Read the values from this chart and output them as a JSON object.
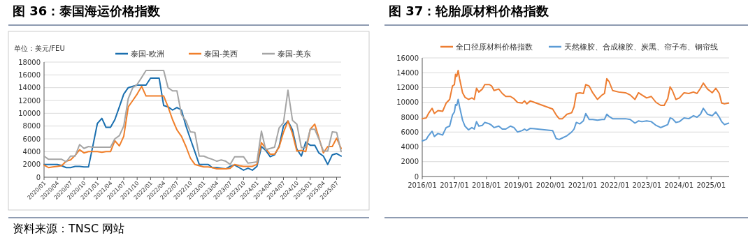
{
  "chart_data": [
    {
      "type": "line",
      "title": "图 36：泰国海运价格指数",
      "ylabel": "单位：美元/FEU",
      "annotations": [
        "资料来源：TNSC 网站"
      ],
      "legend": "top",
      "grid": "y",
      "marker": "none",
      "line_style": "solid",
      "x": [
        "2020-01",
        "2020-02",
        "2020-03",
        "2020-04",
        "2020-05",
        "2020-06",
        "2020-07",
        "2020-08",
        "2020-09",
        "2020-10",
        "2020-11",
        "2020-12",
        "2021-01",
        "2021-02",
        "2021-03",
        "2021-04",
        "2021-05",
        "2021-06",
        "2021-07",
        "2021-08",
        "2021-09",
        "2021-10",
        "2021-11",
        "2021-12",
        "2022-01",
        "2022-02",
        "2022-03",
        "2022-04",
        "2022-05",
        "2022-06",
        "2022-07",
        "2022-08",
        "2022-09",
        "2022-10",
        "2022-11",
        "2022-12",
        "2023-01",
        "2023-02",
        "2023-03",
        "2023-04",
        "2023-05",
        "2023-06",
        "2023-07",
        "2023-08",
        "2023-09",
        "2023-10",
        "2023-11",
        "2023-12",
        "2024-01",
        "2024-02",
        "2024-03",
        "2024-04",
        "2024-05",
        "2024-06",
        "2024-07",
        "2024-08",
        "2024-09",
        "2024-10",
        "2024-11",
        "2024-12",
        "2025-01",
        "2025-02",
        "2025-03",
        "2025-04",
        "2025-05",
        "2025-06",
        "2025-07",
        "2025-08"
      ],
      "series": [
        {
          "name": "泰国-欧洲",
          "color": "#1a6faf",
          "values": [
            2000,
            2000,
            2000,
            2000,
            1800,
            1500,
            1500,
            1700,
            1700,
            1600,
            1600,
            4900,
            8400,
            9200,
            7800,
            7800,
            9000,
            11000,
            13000,
            14000,
            14200,
            14400,
            14400,
            14400,
            15500,
            15500,
            15500,
            11200,
            11000,
            10500,
            10900,
            10500,
            8000,
            6000,
            4000,
            2000,
            2000,
            2000,
            1500,
            1500,
            1400,
            1300,
            1700,
            1900,
            1500,
            1100,
            1400,
            1100,
            1700,
            4800,
            4200,
            3200,
            3500,
            4800,
            8000,
            8800,
            7400,
            4400,
            3300,
            5500,
            5000,
            5000,
            3800,
            3300,
            2000,
            3500,
            3700,
            3300
          ]
        },
        {
          "name": "泰国-美西",
          "color": "#f07f2a",
          "values": [
            1900,
            1500,
            1600,
            1700,
            1800,
            2500,
            2700,
            3400,
            4300,
            3800,
            4000,
            4000,
            4000,
            3900,
            4000,
            4000,
            5700,
            4900,
            6400,
            11000,
            12000,
            13000,
            14200,
            12700,
            12700,
            12700,
            12700,
            12700,
            11000,
            9000,
            7400,
            6400,
            4800,
            3000,
            2000,
            1800,
            1600,
            1600,
            1500,
            1300,
            1300,
            1300,
            1400,
            2000,
            1800,
            1700,
            1700,
            1700,
            2000,
            5400,
            4500,
            3600,
            3600,
            4700,
            7000,
            8800,
            6800,
            4100,
            4200,
            4000,
            7500,
            8300,
            6200,
            3800,
            4800,
            4800,
            6100,
            4500
          ]
        },
        {
          "name": "泰国-美东",
          "color": "#a5a5a5",
          "values": [
            3300,
            2800,
            2800,
            2800,
            2800,
            2400,
            3300,
            3300,
            5100,
            4500,
            4800,
            4700,
            4700,
            4700,
            4700,
            4700,
            6000,
            6500,
            8000,
            12300,
            14000,
            14500,
            15600,
            16700,
            16700,
            16700,
            16700,
            16700,
            14000,
            13500,
            13500,
            9800,
            8800,
            7100,
            7000,
            3300,
            3300,
            3000,
            2800,
            2500,
            2700,
            2500,
            2000,
            3200,
            3200,
            3200,
            2200,
            2300,
            2400,
            7200,
            4300,
            4500,
            4700,
            7700,
            8500,
            13600,
            8900,
            8300,
            4600,
            4700,
            7500,
            7500,
            6000,
            4100,
            4100,
            7100,
            7000,
            4000
          ]
        }
      ],
      "xlim": [
        "2020-01",
        "2025-08"
      ],
      "xticks": [
        {
          "value": "2020-01",
          "label": "2020/01"
        },
        {
          "value": "2020-04",
          "label": "2020/04"
        },
        {
          "value": "2020-07",
          "label": "2020/07"
        },
        {
          "value": "2020-10",
          "label": "2020/10"
        },
        {
          "value": "2021-01",
          "label": "2021/01"
        },
        {
          "value": "2021-04",
          "label": "2021/04"
        },
        {
          "value": "2021-07",
          "label": "2021/07"
        },
        {
          "value": "2021-10",
          "label": "2021/10"
        },
        {
          "value": "2022-01",
          "label": "2022/01"
        },
        {
          "value": "2022-04",
          "label": "2022/04"
        },
        {
          "value": "2022-07",
          "label": "2022/07"
        },
        {
          "value": "2022-10",
          "label": "2022/10"
        },
        {
          "value": "2023-01",
          "label": "2023/01"
        },
        {
          "value": "2023-04",
          "label": "2023/04"
        },
        {
          "value": "2023-07",
          "label": "2023/07"
        },
        {
          "value": "2023-10",
          "label": "2023/10"
        },
        {
          "value": "2024-01",
          "label": "2024/01"
        },
        {
          "value": "2024-04",
          "label": "2024/04"
        },
        {
          "value": "2024-07",
          "label": "2024/07"
        },
        {
          "value": "2024-10",
          "label": "2024/10"
        },
        {
          "value": "2025-01",
          "label": "2025/01"
        },
        {
          "value": "2025-04",
          "label": "2025/04"
        },
        {
          "value": "2025-07",
          "label": "2025/07"
        }
      ],
      "ylim": [
        0,
        18000
      ],
      "yticks": [
        0,
        2000,
        4000,
        6000,
        8000,
        10000,
        12000,
        14000,
        16000,
        18000
      ]
    },
    {
      "type": "line",
      "title": "图 37：轮胎原材料价格指数",
      "legend": "top",
      "grid": "y",
      "marker": "none",
      "line_style": "solid",
      "x": [
        "2016-01-01",
        "2016-02-15",
        "2016-03-12",
        "2016-04-22",
        "2016-05-18",
        "2016-06-28",
        "2016-08-20",
        "2016-09-29",
        "2016-11-08",
        "2016-12-10",
        "2017-01-01",
        "2017-01-14",
        "2017-01-28",
        "2017-02-13",
        "2017-03-01",
        "2017-04-04",
        "2017-05-01",
        "2017-06-10",
        "2017-07-19",
        "2017-08-15",
        "2017-09-10",
        "2017-10-06",
        "2017-11-15",
        "2017-12-13",
        "2018-02-04",
        "2018-03-02",
        "2018-03-28",
        "2018-05-21",
        "2018-06-30",
        "2018-08-09",
        "2018-10-01",
        "2018-11-10",
        "2018-12-20",
        "2019-02-12",
        "2019-03-10",
        "2019-04-05",
        "2019-05-15",
        "2020-01-24",
        "2020-03-05",
        "2020-04-08",
        "2020-05-14",
        "2020-07-05",
        "2020-08-28",
        "2020-09-24",
        "2020-10-20",
        "2020-11-29",
        "2021-01-08",
        "2021-02-04",
        "2021-03-15",
        "2021-04-24",
        "2021-06-17",
        "2021-08-09",
        "2021-09-05",
        "2021-10-02",
        "2021-10-28",
        "2021-12-07",
        "2022-02-12",
        "2022-05-02",
        "2022-06-25",
        "2022-08-18",
        "2022-09-27",
        "2022-11-05",
        "2022-12-29",
        "2023-02-20",
        "2023-04-15",
        "2023-06-07",
        "2023-07-17",
        "2023-08-26",
        "2023-09-22",
        "2023-10-18",
        "2023-11-27",
        "2024-01-06",
        "2024-02-28",
        "2024-04-22",
        "2024-06-14",
        "2024-07-24",
        "2024-09-02",
        "2024-10-04",
        "2024-11-21",
        "2025-01-14",
        "2025-02-23",
        "2025-04-04",
        "2025-05-01",
        "2025-06-02",
        "2025-07-19"
      ],
      "series": [
        {
          "name": "全口径原材料价格指数",
          "color": "#ed7d31",
          "values": [
            7800,
            7900,
            8500,
            9200,
            8500,
            8900,
            8800,
            9900,
            10400,
            12200,
            12400,
            13800,
            13500,
            14300,
            13200,
            11300,
            10700,
            10400,
            10600,
            10400,
            11900,
            11400,
            11800,
            12400,
            12400,
            12200,
            11600,
            11800,
            11200,
            10800,
            10800,
            10500,
            10000,
            9900,
            10200,
            9800,
            10200,
            9100,
            8300,
            7800,
            7800,
            8400,
            8600,
            9400,
            11200,
            11300,
            11200,
            12400,
            12200,
            11300,
            10400,
            11000,
            11200,
            13200,
            12800,
            11600,
            11400,
            11300,
            11000,
            10400,
            11300,
            11000,
            10600,
            10800,
            10000,
            9600,
            9600,
            10500,
            12100,
            11600,
            10400,
            10600,
            11300,
            11200,
            11400,
            11200,
            11900,
            12600,
            11800,
            11300,
            11900,
            11200,
            9900,
            9800,
            9900
          ]
        },
        {
          "name": "天然橡胶、合成橡胶、炭黑、帘子布、钢帘线",
          "color": "#5b9bd5",
          "values": [
            4800,
            5000,
            5500,
            6100,
            5400,
            5800,
            5600,
            6600,
            6800,
            8300,
            8700,
            9700,
            9600,
            10400,
            9400,
            7600,
            6800,
            6300,
            6600,
            6400,
            7400,
            6800,
            6900,
            7300,
            7100,
            6900,
            6600,
            6800,
            6400,
            6400,
            6800,
            6600,
            6000,
            6200,
            6400,
            6200,
            6500,
            6200,
            5100,
            5000,
            5200,
            5500,
            6000,
            6400,
            7300,
            7100,
            7500,
            8500,
            7700,
            7700,
            7600,
            7700,
            7700,
            8400,
            8100,
            7800,
            7800,
            7800,
            7700,
            7200,
            7500,
            7400,
            7500,
            7400,
            6900,
            6600,
            6800,
            7000,
            7900,
            7800,
            7300,
            7400,
            7900,
            7800,
            8200,
            8000,
            8400,
            9200,
            8400,
            8200,
            8700,
            8000,
            7400,
            7000,
            7200
          ]
        }
      ],
      "xlim": [
        "2016-01-01",
        "2025-07-25"
      ],
      "xticks": [
        {
          "value": "2016-01",
          "label": "2016/01"
        },
        {
          "value": "2017-01",
          "label": "2017/01"
        },
        {
          "value": "2018-01",
          "label": "2018/01"
        },
        {
          "value": "2019-01",
          "label": "2019/01"
        },
        {
          "value": "2020-01",
          "label": "2020/01"
        },
        {
          "value": "2021-01",
          "label": "2021/01"
        },
        {
          "value": "2022-01",
          "label": "2022/01"
        },
        {
          "value": "2023-01",
          "label": "2023/01"
        },
        {
          "value": "2024-01",
          "label": "2024/01"
        },
        {
          "value": "2025-01",
          "label": "2025/01"
        }
      ],
      "ylim": [
        0,
        16000
      ],
      "yticks": [
        0,
        2000,
        4000,
        6000,
        8000,
        10000,
        12000,
        14000,
        16000
      ]
    }
  ]
}
